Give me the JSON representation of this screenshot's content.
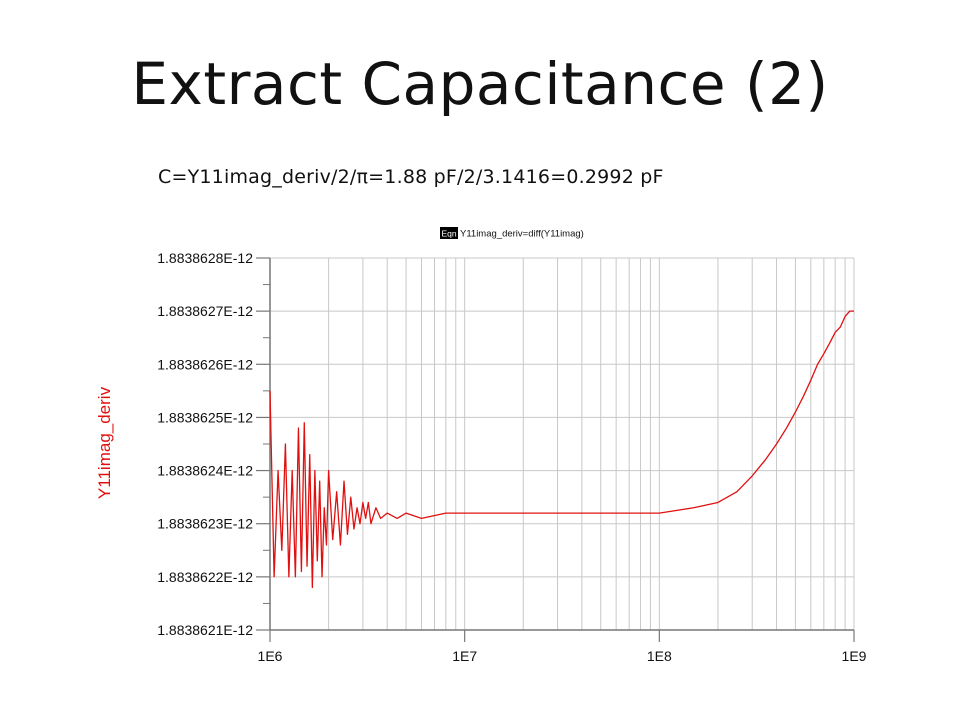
{
  "slide": {
    "title": "Extract Capacitance (2)",
    "formula": "C=Y11imag_deriv/2/π=1.88 pF/2/3.1416=0.2992 pF"
  },
  "equation": {
    "badge": "Eqn",
    "text": "Y11imag_deriv=diff(Y11imag)"
  },
  "colors": {
    "series": "#e01010",
    "grid": "#c8c8c8",
    "axis": "#777777"
  },
  "chart_data": {
    "type": "line",
    "title": "",
    "xlabel": "",
    "ylabel": "Y11imag_deriv",
    "x_scale": "log",
    "xlim": [
      1000000,
      1000000000
    ],
    "x_ticks": [
      {
        "value": 1000000,
        "label": "1E6"
      },
      {
        "value": 10000000,
        "label": "1E7"
      },
      {
        "value": 100000000,
        "label": "1E8"
      },
      {
        "value": 1000000000,
        "label": "1E9"
      }
    ],
    "ylim": [
      1.8838621e-12,
      1.8838628e-12
    ],
    "y_ticks": [
      {
        "value": 1.8838628e-12,
        "label": "1.8838628E-12"
      },
      {
        "value": 1.8838627e-12,
        "label": "1.8838627E-12"
      },
      {
        "value": 1.8838626e-12,
        "label": "1.8838626E-12"
      },
      {
        "value": 1.8838625e-12,
        "label": "1.8838625E-12"
      },
      {
        "value": 1.8838624e-12,
        "label": "1.8838624E-12"
      },
      {
        "value": 1.8838623e-12,
        "label": "1.8838623E-12"
      },
      {
        "value": 1.8838622e-12,
        "label": "1.8838622E-12"
      },
      {
        "value": 1.8838621e-12,
        "label": "1.8838621E-12"
      }
    ],
    "grid": true,
    "series": [
      {
        "x": [
          1000000,
          1050000,
          1100000,
          1150000,
          1200000,
          1250000,
          1300000,
          1350000,
          1400000,
          1450000,
          1500000,
          1550000,
          1600000,
          1650000,
          1700000,
          1750000,
          1800000,
          1850000,
          1900000,
          1950000,
          2000000,
          2100000,
          2200000,
          2300000,
          2400000,
          2500000,
          2600000,
          2700000,
          2800000,
          2900000,
          3000000,
          3100000,
          3200000,
          3300000,
          3500000,
          3700000,
          4000000,
          4500000,
          5000000,
          6000000,
          8000000,
          10000000,
          20000000,
          50000000,
          100000000,
          150000000,
          200000000,
          250000000,
          300000000,
          350000000,
          400000000,
          450000000,
          500000000,
          550000000,
          600000000,
          650000000,
          700000000,
          750000000,
          800000000,
          850000000,
          900000000,
          950000000,
          1000000000
        ],
        "values": [
          1.88386255e-12,
          1.8838622e-12,
          1.8838624e-12,
          1.88386225e-12,
          1.88386245e-12,
          1.8838622e-12,
          1.8838624e-12,
          1.8838622e-12,
          1.88386248e-12,
          1.88386221e-12,
          1.88386249e-12,
          1.88386222e-12,
          1.88386243e-12,
          1.88386218e-12,
          1.8838624e-12,
          1.88386223e-12,
          1.88386238e-12,
          1.8838622e-12,
          1.88386233e-12,
          1.88386226e-12,
          1.8838624e-12,
          1.88386227e-12,
          1.88386236e-12,
          1.88386226e-12,
          1.88386238e-12,
          1.88386228e-12,
          1.88386235e-12,
          1.88386229e-12,
          1.88386233e-12,
          1.8838623e-12,
          1.88386234e-12,
          1.88386231e-12,
          1.88386234e-12,
          1.8838623e-12,
          1.88386233e-12,
          1.88386231e-12,
          1.88386232e-12,
          1.88386231e-12,
          1.88386232e-12,
          1.88386231e-12,
          1.88386232e-12,
          1.88386232e-12,
          1.88386232e-12,
          1.88386232e-12,
          1.88386232e-12,
          1.88386233e-12,
          1.88386234e-12,
          1.88386236e-12,
          1.88386239e-12,
          1.88386242e-12,
          1.88386245e-12,
          1.88386248e-12,
          1.88386251e-12,
          1.88386254e-12,
          1.88386257e-12,
          1.8838626e-12,
          1.88386262e-12,
          1.88386264e-12,
          1.88386266e-12,
          1.88386267e-12,
          1.88386269e-12,
          1.8838627e-12,
          1.8838627e-12
        ]
      }
    ]
  }
}
